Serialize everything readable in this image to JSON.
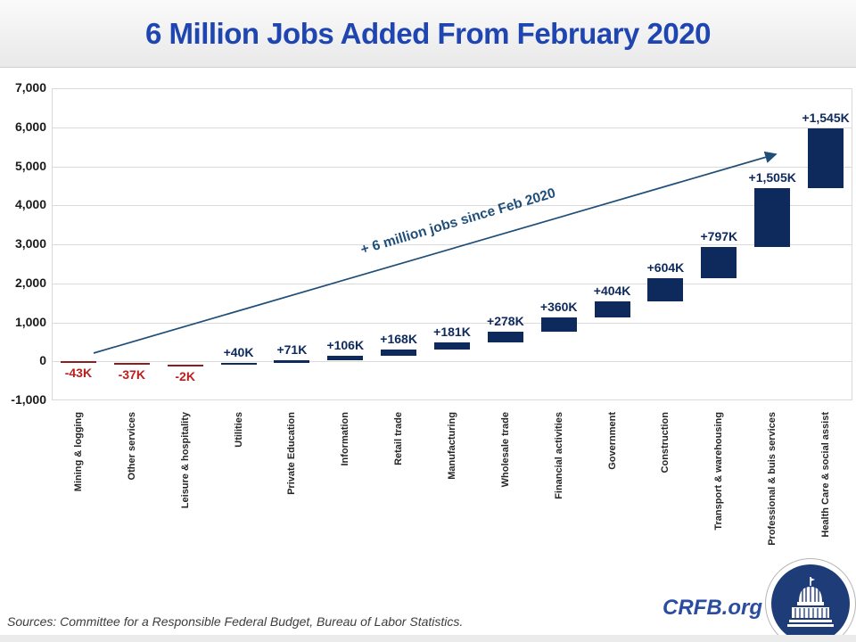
{
  "header": {
    "title": "6 Million Jobs Added From February 2020"
  },
  "chart_data": {
    "type": "bar",
    "subtype": "waterfall",
    "title": "6 Million Jobs Added From February 2020",
    "categories": [
      "Mining & logging",
      "Other services",
      "Leisure & hospitality",
      "Utilities",
      "Private Education",
      "Information",
      "Retail trade",
      "Manufacturing",
      "Wholesale trade",
      "Financial activities",
      "Government",
      "Construction",
      "Transport & warehousing",
      "Professional & buis services",
      "Health Care & social assist"
    ],
    "values": [
      -43,
      -37,
      -2,
      40,
      71,
      106,
      168,
      181,
      278,
      360,
      404,
      604,
      797,
      1505,
      1545
    ],
    "bar_labels": [
      "-43K",
      "-37K",
      "-2K",
      "+40K",
      "+71K",
      "+106K",
      "+168K",
      "+181K",
      "+278K",
      "+360K",
      "+404K",
      "+604K",
      "+797K",
      "+1,505K",
      "+1,545K"
    ],
    "cumulative_total": 5977,
    "ylim": [
      -1000,
      7000
    ],
    "ytick_values": [
      7000,
      6000,
      5000,
      4000,
      3000,
      2000,
      1000,
      0,
      -1000
    ],
    "ytick_labels": [
      "7,000",
      "6,000",
      "5,000",
      "4,000",
      "3,000",
      "2,000",
      "1,000",
      "0",
      "-1,000"
    ],
    "grid": "horizontal",
    "annotation": "+ 6 million jobs since Feb 2020",
    "colors": {
      "positive_bar": "#0E2A5C",
      "negative_bar": "#8F1D1D",
      "positive_label": "#0E2A5C",
      "negative_label": "#BE1E1E",
      "annotation": "#1F4E79",
      "arrow": "#1F4E79",
      "gridline": "#DADADA",
      "title": "#1F45B0"
    }
  },
  "footer": {
    "sources": "Sources: Committee for a Responsible Federal Budget, Bureau of Labor Statistics.",
    "brand": "CRFB.org",
    "logo": "capitol-dome-logo"
  }
}
